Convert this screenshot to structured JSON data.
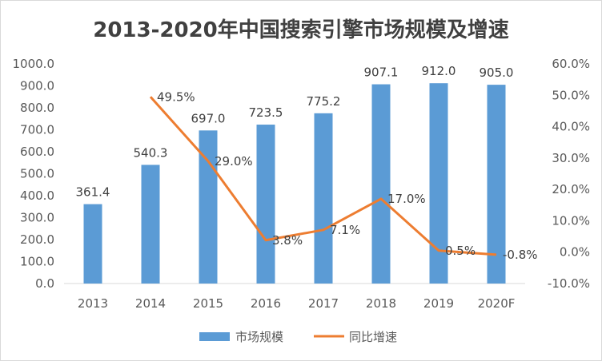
{
  "chart_data": {
    "type": "bar+line",
    "title": "2013-2020年中国搜索引擎市场规模及增速",
    "categories": [
      "2013",
      "2014",
      "2015",
      "2016",
      "2017",
      "2018",
      "2019",
      "2020F"
    ],
    "series": [
      {
        "name": "市场规模",
        "type": "bar",
        "axis": "left",
        "color": "#5b9bd5",
        "values": [
          361.4,
          540.3,
          697.0,
          723.5,
          775.2,
          907.1,
          912.0,
          905.0
        ],
        "labels": [
          "361.4",
          "540.3",
          "697.0",
          "723.5",
          "775.2",
          "907.1",
          "912.0",
          "905.0"
        ]
      },
      {
        "name": "同比增速",
        "type": "line",
        "axis": "right",
        "color": "#ed7d31",
        "values": [
          null,
          49.5,
          29.0,
          3.8,
          7.1,
          17.0,
          0.5,
          -0.8
        ],
        "labels": [
          "",
          "49.5%",
          "29.0%",
          "3.8%",
          "7.1%",
          "17.0%",
          "0.5%",
          "-0.8%"
        ]
      }
    ],
    "y_left": {
      "min": 0,
      "max": 1000,
      "step": 100,
      "tick_labels": [
        "0.0",
        "100.0",
        "200.0",
        "300.0",
        "400.0",
        "500.0",
        "600.0",
        "700.0",
        "800.0",
        "900.0",
        "1000.0"
      ]
    },
    "y_right": {
      "min": -10,
      "max": 60,
      "step": 10,
      "tick_labels": [
        "-10.0%",
        "0.0%",
        "10.0%",
        "20.0%",
        "30.0%",
        "40.0%",
        "50.0%",
        "60.0%"
      ]
    },
    "legend_position": "bottom",
    "grid": false
  }
}
